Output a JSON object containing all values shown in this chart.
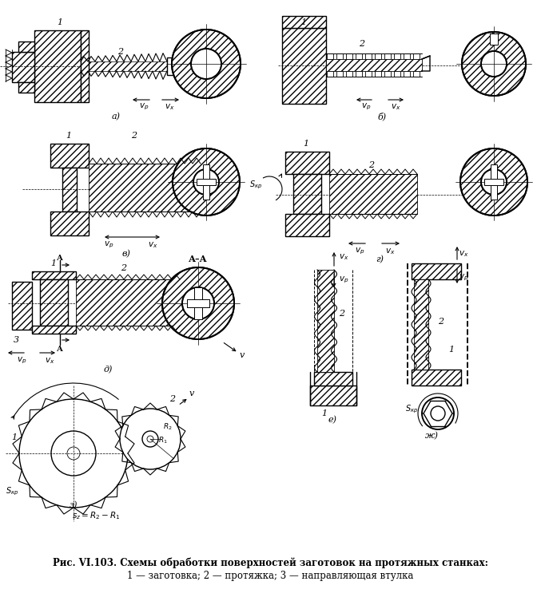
{
  "title": "Рис. VI.103. Схемы обработки поверхностей заготовок на протяжных станках:",
  "caption_line2": "1 — заготовка; 2 — протяжка; 3 — направляющая втулка",
  "bg": "#ffffff",
  "fg": "#1a1a1a",
  "sections": [
    "а)",
    "б)",
    "в)",
    "г)",
    "д)",
    "з)",
    "е)",
    "ж)"
  ]
}
